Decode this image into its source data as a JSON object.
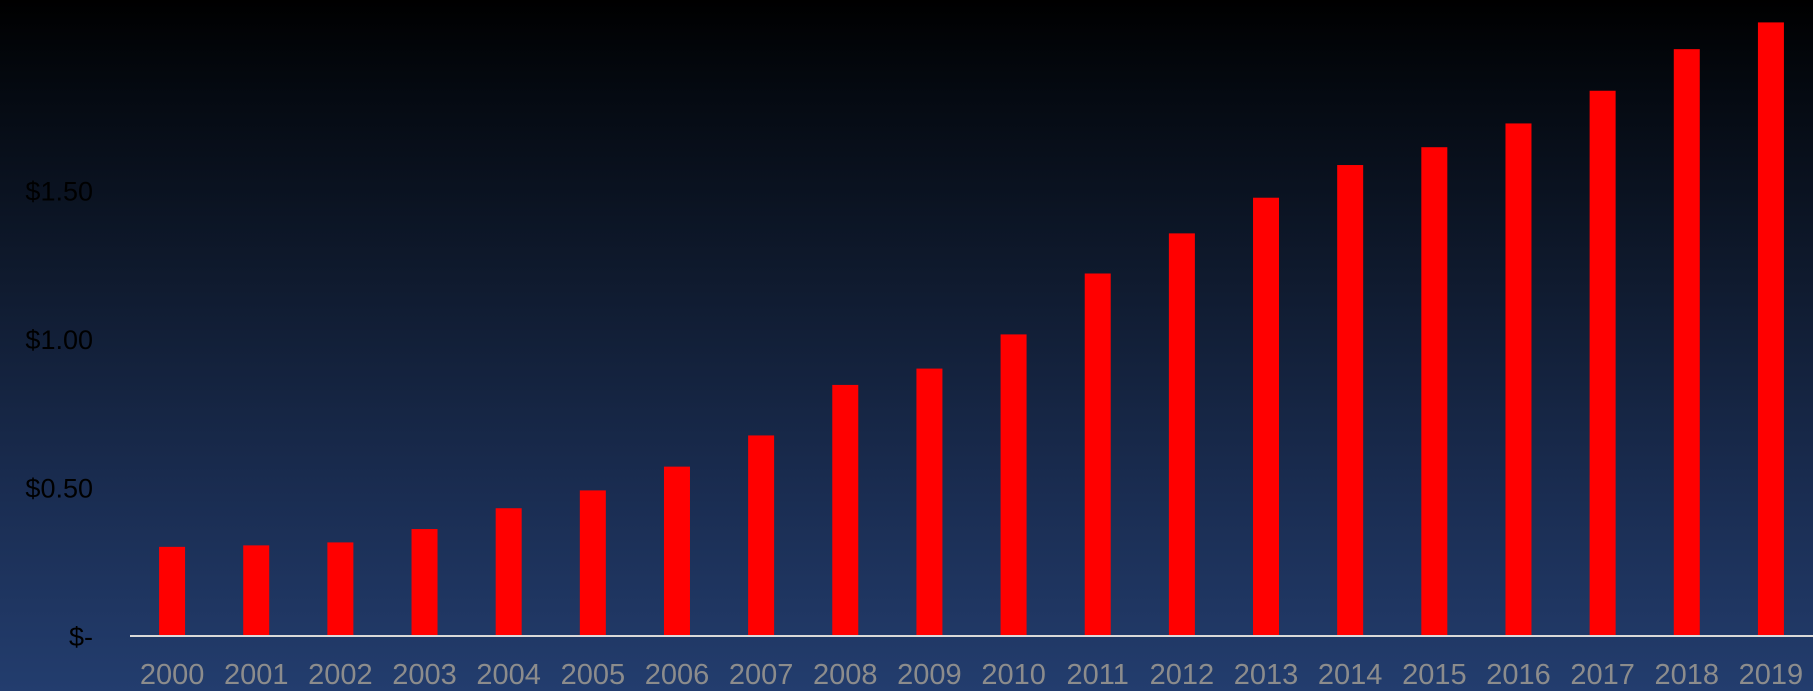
{
  "chart_data": {
    "type": "bar",
    "categories": [
      "2000",
      "2001",
      "2002",
      "2003",
      "2004",
      "2005",
      "2006",
      "2007",
      "2008",
      "2009",
      "2010",
      "2011",
      "2012",
      "2013",
      "2014",
      "2015",
      "2016",
      "2017",
      "2018",
      "2019"
    ],
    "values": [
      0.3,
      0.305,
      0.315,
      0.36,
      0.43,
      0.49,
      0.57,
      0.675,
      0.845,
      0.9,
      1.015,
      1.22,
      1.355,
      1.475,
      1.585,
      1.645,
      1.725,
      1.835,
      1.975,
      2.065
    ],
    "yticks": [
      {
        "value": 0,
        "label": "$-"
      },
      {
        "value": 0.5,
        "label": "$0.50"
      },
      {
        "value": 1.0,
        "label": "$1.00"
      },
      {
        "value": 1.5,
        "label": "$1.50"
      }
    ],
    "ylim": [
      0,
      2.1
    ],
    "title": "",
    "xlabel": "",
    "ylabel": "",
    "bar_color": "#ff0000",
    "axis_color": "#d9d9d9",
    "grid": false
  }
}
